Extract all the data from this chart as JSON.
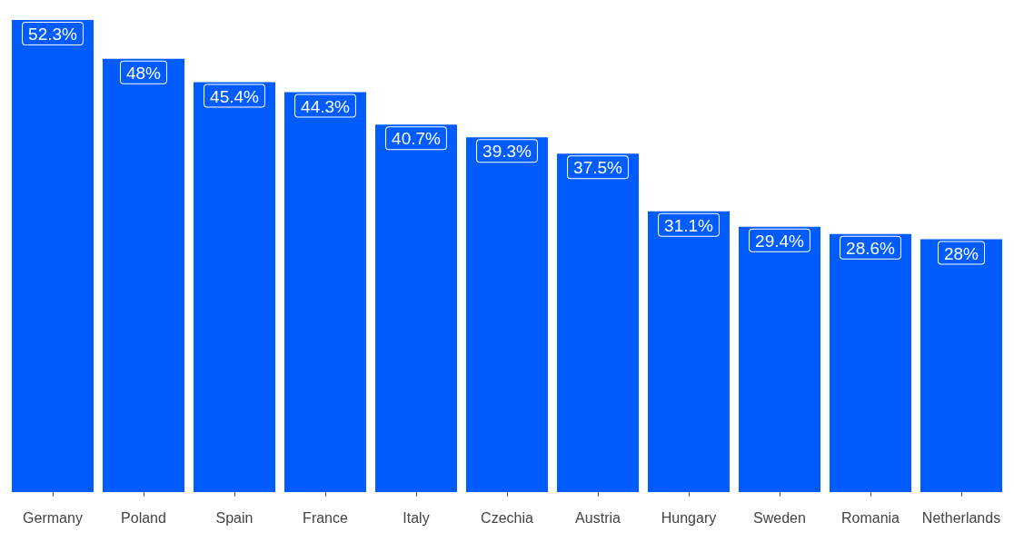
{
  "chart_data": {
    "type": "bar",
    "categories": [
      "Germany",
      "Poland",
      "Spain",
      "France",
      "Italy",
      "Czechia",
      "Austria",
      "Hungary",
      "Sweden",
      "Romania",
      "Netherlands"
    ],
    "values": [
      52.3,
      48,
      45.4,
      44.3,
      40.7,
      39.3,
      37.5,
      31.1,
      29.4,
      28.6,
      28
    ],
    "value_labels": [
      "52.3%",
      "48%",
      "45.4%",
      "44.3%",
      "40.7%",
      "39.3%",
      "37.5%",
      "31.1%",
      "29.4%",
      "28.6%",
      "28%"
    ],
    "color": "#005cff",
    "grid": false
  }
}
